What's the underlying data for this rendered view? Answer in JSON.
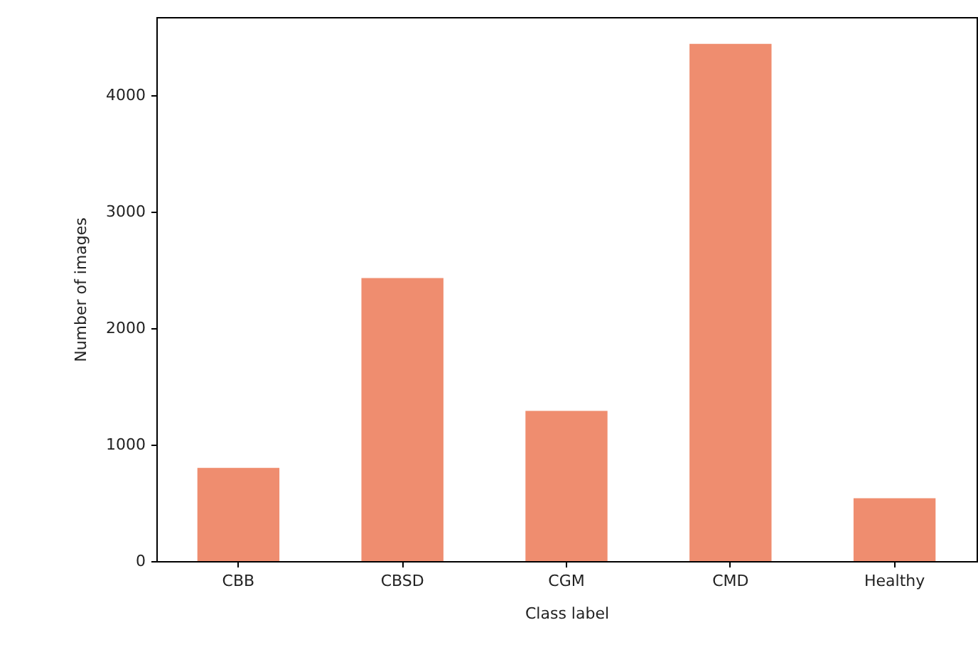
{
  "chart_data": {
    "type": "bar",
    "xlabel": "Class label",
    "ylabel": "Number of images",
    "categories": [
      "CBB",
      "CBSD",
      "CGM",
      "CMD",
      "Healthy"
    ],
    "values": [
      800,
      2430,
      1290,
      4440,
      540
    ],
    "color": "#ef8d6f",
    "ylim": [
      0,
      4670
    ],
    "yticks": [
      0,
      1000,
      2000,
      3000,
      4000
    ],
    "grid": false
  }
}
